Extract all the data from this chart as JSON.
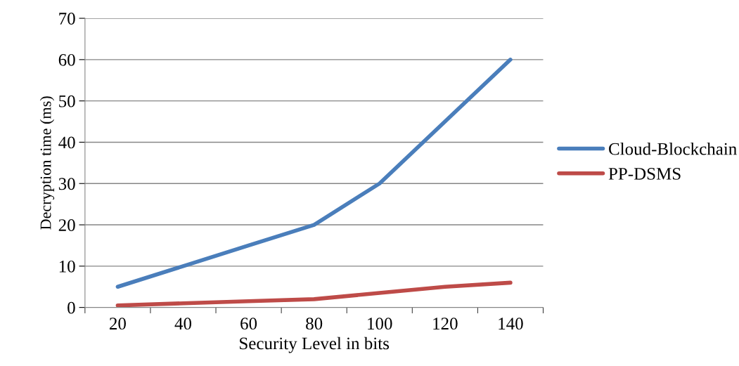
{
  "chart_data": {
    "type": "line",
    "xlabel": "Security Level in bits",
    "ylabel": "Decryption time (ms)",
    "categories": [
      "20",
      "40",
      "60",
      "80",
      "100",
      "120",
      "140"
    ],
    "series": [
      {
        "name": "Cloud-Blockchain",
        "color": "#4a7ebb",
        "values": [
          5,
          10,
          15,
          20,
          30,
          45,
          60
        ]
      },
      {
        "name": "PP-DSMS",
        "color": "#be4b48",
        "values": [
          0.5,
          1,
          1.5,
          2,
          3.5,
          5,
          6
        ]
      }
    ],
    "ylim": [
      0,
      70
    ],
    "yticks": [
      0,
      10,
      20,
      30,
      40,
      50,
      60,
      70
    ],
    "grid": "y",
    "legend": "right",
    "marker": "none",
    "line_style": "solid"
  }
}
